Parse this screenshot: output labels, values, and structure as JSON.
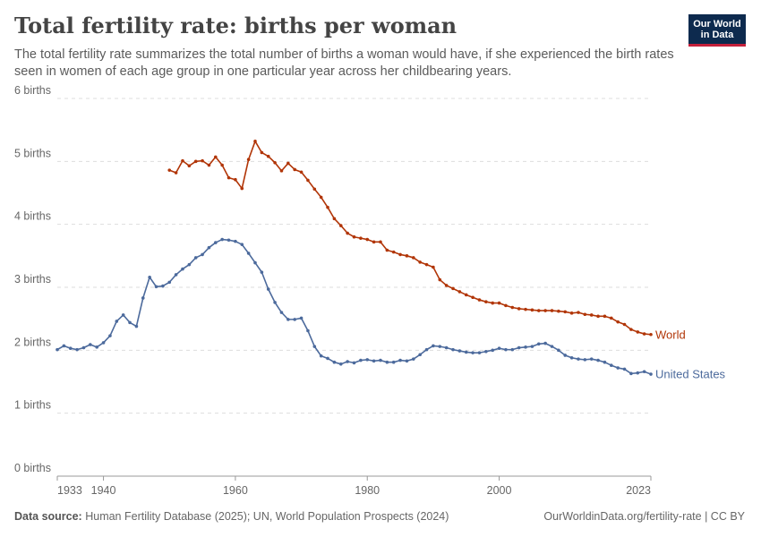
{
  "header": {
    "title": "Total fertility rate: births per woman",
    "subtitle": "The total fertility rate summarizes the total number of births a woman would have, if she experienced the birth rates seen in women of each age group in one particular year across her childbearing years.",
    "logo_line1": "Our World",
    "logo_line2": "in Data"
  },
  "footer": {
    "source_label": "Data source:",
    "source_text": "Human Fertility Database (2025); UN, World Population Prospects (2024)",
    "url_text": "OurWorldinData.org/fertility-rate | CC BY"
  },
  "colors": {
    "world": "#b13507",
    "united_states": "#4c6a9c",
    "grid": "#dddddd",
    "axis": "#999999"
  },
  "chart_data": {
    "type": "line",
    "title": "Total fertility rate: births per woman",
    "xlim": [
      1933,
      2023
    ],
    "ylim": [
      0,
      6
    ],
    "x_ticks": [
      1933,
      1940,
      1960,
      1980,
      2000,
      2023
    ],
    "y_ticks": [
      {
        "value": 0,
        "label": "0 births"
      },
      {
        "value": 1,
        "label": "1 births"
      },
      {
        "value": 2,
        "label": "2 births"
      },
      {
        "value": 3,
        "label": "3 births"
      },
      {
        "value": 4,
        "label": "4 births"
      },
      {
        "value": 5,
        "label": "5 births"
      },
      {
        "value": 6,
        "label": "6 births"
      }
    ],
    "grid": "horizontal dashed",
    "legend": "inline labels at line ends",
    "series": [
      {
        "name": "World",
        "color": "#b13507",
        "points": [
          [
            1950,
            4.86
          ],
          [
            1951,
            4.82
          ],
          [
            1952,
            5.01
          ],
          [
            1953,
            4.93
          ],
          [
            1954,
            5.0
          ],
          [
            1955,
            5.01
          ],
          [
            1956,
            4.94
          ],
          [
            1957,
            5.07
          ],
          [
            1958,
            4.94
          ],
          [
            1959,
            4.74
          ],
          [
            1960,
            4.71
          ],
          [
            1961,
            4.57
          ],
          [
            1962,
            5.03
          ],
          [
            1963,
            5.32
          ],
          [
            1964,
            5.14
          ],
          [
            1965,
            5.08
          ],
          [
            1966,
            4.98
          ],
          [
            1967,
            4.85
          ],
          [
            1968,
            4.97
          ],
          [
            1969,
            4.87
          ],
          [
            1970,
            4.83
          ],
          [
            1971,
            4.7
          ],
          [
            1972,
            4.56
          ],
          [
            1973,
            4.43
          ],
          [
            1974,
            4.27
          ],
          [
            1975,
            4.09
          ],
          [
            1976,
            3.98
          ],
          [
            1977,
            3.86
          ],
          [
            1978,
            3.8
          ],
          [
            1979,
            3.78
          ],
          [
            1980,
            3.76
          ],
          [
            1981,
            3.72
          ],
          [
            1982,
            3.72
          ],
          [
            1983,
            3.59
          ],
          [
            1984,
            3.56
          ],
          [
            1985,
            3.52
          ],
          [
            1986,
            3.5
          ],
          [
            1987,
            3.47
          ],
          [
            1988,
            3.4
          ],
          [
            1989,
            3.36
          ],
          [
            1990,
            3.32
          ],
          [
            1991,
            3.12
          ],
          [
            1992,
            3.03
          ],
          [
            1993,
            2.98
          ],
          [
            1994,
            2.93
          ],
          [
            1995,
            2.88
          ],
          [
            1996,
            2.84
          ],
          [
            1997,
            2.8
          ],
          [
            1998,
            2.77
          ],
          [
            1999,
            2.75
          ],
          [
            2000,
            2.75
          ],
          [
            2001,
            2.71
          ],
          [
            2002,
            2.68
          ],
          [
            2003,
            2.66
          ],
          [
            2004,
            2.65
          ],
          [
            2005,
            2.64
          ],
          [
            2006,
            2.63
          ],
          [
            2007,
            2.63
          ],
          [
            2008,
            2.63
          ],
          [
            2009,
            2.62
          ],
          [
            2010,
            2.61
          ],
          [
            2011,
            2.59
          ],
          [
            2012,
            2.6
          ],
          [
            2013,
            2.57
          ],
          [
            2014,
            2.56
          ],
          [
            2015,
            2.54
          ],
          [
            2016,
            2.54
          ],
          [
            2017,
            2.51
          ],
          [
            2018,
            2.45
          ],
          [
            2019,
            2.41
          ],
          [
            2020,
            2.33
          ],
          [
            2021,
            2.29
          ],
          [
            2022,
            2.26
          ],
          [
            2023,
            2.25
          ]
        ]
      },
      {
        "name": "United States",
        "color": "#4c6a9c",
        "points": [
          [
            1933,
            2.01
          ],
          [
            1934,
            2.07
          ],
          [
            1935,
            2.03
          ],
          [
            1936,
            2.01
          ],
          [
            1937,
            2.04
          ],
          [
            1938,
            2.09
          ],
          [
            1939,
            2.05
          ],
          [
            1940,
            2.12
          ],
          [
            1941,
            2.23
          ],
          [
            1942,
            2.46
          ],
          [
            1943,
            2.56
          ],
          [
            1944,
            2.44
          ],
          [
            1945,
            2.38
          ],
          [
            1946,
            2.83
          ],
          [
            1947,
            3.16
          ],
          [
            1948,
            3.01
          ],
          [
            1949,
            3.02
          ],
          [
            1950,
            3.08
          ],
          [
            1951,
            3.2
          ],
          [
            1952,
            3.29
          ],
          [
            1953,
            3.36
          ],
          [
            1954,
            3.47
          ],
          [
            1955,
            3.52
          ],
          [
            1956,
            3.63
          ],
          [
            1957,
            3.71
          ],
          [
            1958,
            3.76
          ],
          [
            1959,
            3.75
          ],
          [
            1960,
            3.73
          ],
          [
            1961,
            3.68
          ],
          [
            1962,
            3.54
          ],
          [
            1963,
            3.39
          ],
          [
            1964,
            3.24
          ],
          [
            1965,
            2.97
          ],
          [
            1966,
            2.76
          ],
          [
            1967,
            2.6
          ],
          [
            1968,
            2.49
          ],
          [
            1969,
            2.49
          ],
          [
            1970,
            2.51
          ],
          [
            1971,
            2.31
          ],
          [
            1972,
            2.06
          ],
          [
            1973,
            1.91
          ],
          [
            1974,
            1.87
          ],
          [
            1975,
            1.81
          ],
          [
            1976,
            1.78
          ],
          [
            1977,
            1.82
          ],
          [
            1978,
            1.8
          ],
          [
            1979,
            1.84
          ],
          [
            1980,
            1.85
          ],
          [
            1981,
            1.83
          ],
          [
            1982,
            1.84
          ],
          [
            1983,
            1.81
          ],
          [
            1984,
            1.81
          ],
          [
            1985,
            1.84
          ],
          [
            1986,
            1.83
          ],
          [
            1987,
            1.86
          ],
          [
            1988,
            1.93
          ],
          [
            1989,
            2.01
          ],
          [
            1990,
            2.07
          ],
          [
            1991,
            2.06
          ],
          [
            1992,
            2.04
          ],
          [
            1993,
            2.01
          ],
          [
            1994,
            1.99
          ],
          [
            1995,
            1.97
          ],
          [
            1996,
            1.96
          ],
          [
            1997,
            1.96
          ],
          [
            1998,
            1.98
          ],
          [
            1999,
            2.0
          ],
          [
            2000,
            2.03
          ],
          [
            2001,
            2.01
          ],
          [
            2002,
            2.01
          ],
          [
            2003,
            2.04
          ],
          [
            2004,
            2.05
          ],
          [
            2005,
            2.06
          ],
          [
            2006,
            2.1
          ],
          [
            2007,
            2.11
          ],
          [
            2008,
            2.06
          ],
          [
            2009,
            2.0
          ],
          [
            2010,
            1.92
          ],
          [
            2011,
            1.88
          ],
          [
            2012,
            1.86
          ],
          [
            2013,
            1.85
          ],
          [
            2014,
            1.86
          ],
          [
            2015,
            1.84
          ],
          [
            2016,
            1.81
          ],
          [
            2017,
            1.76
          ],
          [
            2018,
            1.72
          ],
          [
            2019,
            1.7
          ],
          [
            2020,
            1.63
          ],
          [
            2021,
            1.64
          ],
          [
            2022,
            1.66
          ],
          [
            2023,
            1.62
          ]
        ]
      }
    ]
  }
}
